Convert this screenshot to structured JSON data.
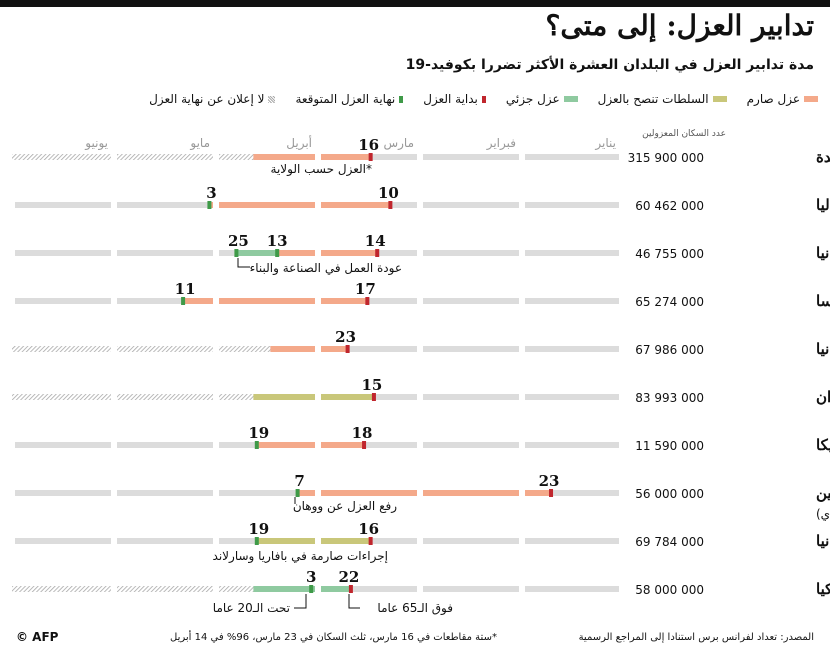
{
  "header": {
    "title": "تدابير العزل: إلى متى؟",
    "subtitle": "مدة تدابير العزل في البلدان العشرة الأكثر تضررا بكوفيد-19"
  },
  "legend": {
    "items": [
      {
        "label": "عزل صارم",
        "type": "bar",
        "color": "#f4a98a"
      },
      {
        "label": "السلطات تنصح بالعزل",
        "type": "bar",
        "color": "#c9c77a"
      },
      {
        "label": "عزل جزئي",
        "type": "bar",
        "color": "#8fcaa0"
      },
      {
        "label": "بداية العزل",
        "type": "tick",
        "color": "#c0262d"
      },
      {
        "label": "نهاية العزل المتوقعة",
        "type": "tick",
        "color": "#3f9a48"
      },
      {
        "label": "لا إعلان عن نهاية العزل",
        "type": "hatch",
        "color": "#aaaaaa"
      }
    ]
  },
  "column_header": "عدد السكان المعزولين",
  "footer": {
    "source": "المصدر: تعداد لفرانس برس استنادا إلى المراجع الرسمية",
    "note": "*ستة مقاطعات في 16 مارس، ثلث السكان في 23 مارس، 96% في 14 أبريل",
    "credit": "© AFP"
  },
  "colors": {
    "strict": "#f4a98a",
    "advised": "#c9c77a",
    "partial": "#8fcaa0",
    "start": "#c0262d",
    "end": "#3f9a48",
    "background": "#dcdcdc",
    "hatch": "#aaaaaa"
  },
  "chart_data": {
    "type": "gantt",
    "months": [
      "يناير",
      "فبراير",
      "مارس",
      "أبريل",
      "مايو",
      "يونيو"
    ],
    "date_range": [
      "2020-01-01",
      "2020-06-30"
    ],
    "rows": [
      {
        "country": "الولايات المتحدة",
        "population": "315 900 000",
        "segments": [
          {
            "type": "strict",
            "start": "2020-03-16",
            "end": "2020-04-20"
          }
        ],
        "start_date": "2020-03-16",
        "start_label": "16",
        "end_date": null,
        "end_label": null,
        "hatch_from": "2020-04-20",
        "annotation": "*العزل حسب الولاية"
      },
      {
        "country": "إيطاليا",
        "population": "60 462 000",
        "segments": [
          {
            "type": "strict",
            "start": "2020-03-10",
            "end": "2020-05-03"
          }
        ],
        "start_date": "2020-03-10",
        "start_label": "10",
        "end_date": "2020-05-03",
        "end_label": "3",
        "hatch_from": null,
        "annotation": null
      },
      {
        "country": "إسبانيا",
        "population": "46 755 000",
        "segments": [
          {
            "type": "strict",
            "start": "2020-03-14",
            "end": "2020-04-13"
          },
          {
            "type": "partial",
            "start": "2020-04-13",
            "end": "2020-04-25"
          }
        ],
        "start_date": "2020-03-14",
        "start_label": "14",
        "end_date": "2020-04-25",
        "end_label": "25",
        "extra_marks": [
          {
            "date": "2020-04-13",
            "label": "13"
          }
        ],
        "hatch_from": null,
        "annotation": "عودة العمل في الصناعة والبناء"
      },
      {
        "country": "فرنسا",
        "population": "65 274 000",
        "segments": [
          {
            "type": "strict",
            "start": "2020-03-17",
            "end": "2020-05-11"
          }
        ],
        "start_date": "2020-03-17",
        "start_label": "17",
        "end_date": "2020-05-11",
        "end_label": "11",
        "hatch_from": null,
        "annotation": null
      },
      {
        "country": "بريطانيا",
        "population": "67 986 000",
        "segments": [
          {
            "type": "strict",
            "start": "2020-03-23",
            "end": "2020-04-15"
          }
        ],
        "start_date": "2020-03-23",
        "start_label": "23",
        "end_date": null,
        "end_label": null,
        "hatch_from": "2020-04-15",
        "annotation": null
      },
      {
        "country": "إيران",
        "population": "83 993 000",
        "segments": [
          {
            "type": "advised",
            "start": "2020-03-15",
            "end": "2020-04-20"
          }
        ],
        "start_date": "2020-03-15",
        "start_label": "15",
        "end_date": null,
        "end_label": null,
        "hatch_from": "2020-04-20",
        "annotation": null
      },
      {
        "country": "بلجيكا",
        "population": "11 590 000",
        "segments": [
          {
            "type": "strict",
            "start": "2020-03-18",
            "end": "2020-04-19"
          }
        ],
        "start_date": "2020-03-18",
        "start_label": "18",
        "end_date": "2020-04-19",
        "end_label": "19",
        "hatch_from": null,
        "annotation": null
      },
      {
        "country": "الصين",
        "country_sub": "(مقاطعة هوباي)",
        "population": "56 000 000",
        "segments": [
          {
            "type": "strict",
            "start": "2020-01-23",
            "end": "2020-04-07"
          }
        ],
        "start_date": "2020-01-23",
        "start_label": "23",
        "end_date": "2020-04-07",
        "end_label": "7",
        "hatch_from": null,
        "annotation": "رفع العزل عن ووهان"
      },
      {
        "country": "ألمانيا",
        "population": "69 784 000",
        "segments": [
          {
            "type": "advised",
            "start": "2020-03-16",
            "end": "2020-04-19"
          }
        ],
        "start_date": "2020-03-16",
        "start_label": "16",
        "end_date": "2020-04-19",
        "end_label": "19",
        "hatch_from": null,
        "annotation": "إجراءات صارمة في بافاريا وسارلاند"
      },
      {
        "country": "تركيا",
        "population": "58 000 000",
        "segments": [
          {
            "type": "partial",
            "start": "2020-03-22",
            "end": "2020-04-20"
          }
        ],
        "start_date": "2020-03-22",
        "start_label": "22",
        "end_date": null,
        "end_label": null,
        "extra_marks": [
          {
            "date": "2020-04-03",
            "label": "3"
          }
        ],
        "hatch_from": "2020-04-20",
        "annotation": "فوق الـ65 عاما",
        "annotation2": "تحت الـ20 عاما"
      }
    ]
  }
}
